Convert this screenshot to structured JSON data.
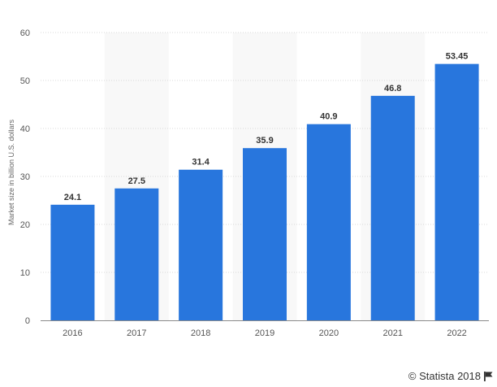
{
  "chart_data": {
    "type": "bar",
    "categories": [
      "2016",
      "2017",
      "2018",
      "2019",
      "2020",
      "2021",
      "2022"
    ],
    "values": [
      24.1,
      27.5,
      31.4,
      35.9,
      40.9,
      46.8,
      53.45
    ],
    "value_labels": [
      "24.1",
      "27.5",
      "31.4",
      "35.9",
      "40.9",
      "46.8",
      "53.45"
    ],
    "title": "",
    "xlabel": "",
    "ylabel": "Market size in billion U.S. dollars",
    "ylim": [
      0,
      60
    ],
    "yticks": [
      0,
      10,
      20,
      30,
      40,
      50,
      60
    ],
    "grid": true,
    "legend": "none",
    "bar_color": "#2876dd"
  },
  "credit": {
    "text": "© Statista 2018",
    "icon": "flag-icon"
  }
}
